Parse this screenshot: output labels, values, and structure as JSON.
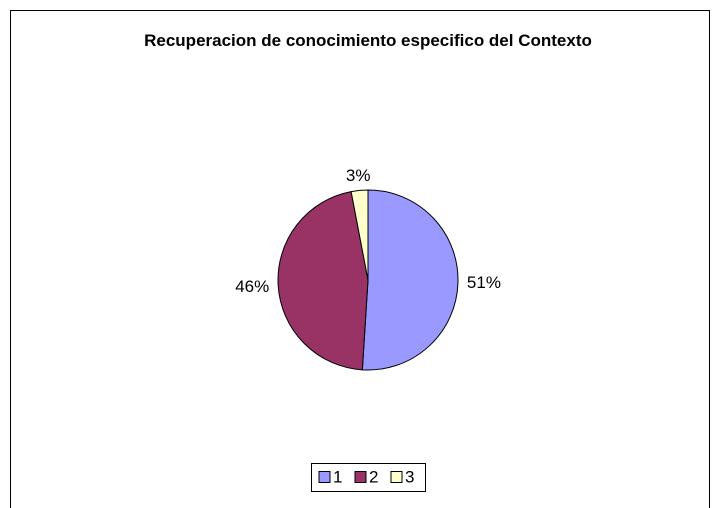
{
  "chart_data": {
    "type": "pie",
    "title": "Recuperacion de conocimiento especifico del Contexto",
    "categories": [
      "1",
      "2",
      "3"
    ],
    "values": [
      51,
      46,
      3
    ],
    "value_labels": [
      "51%",
      "46%",
      "3%"
    ],
    "colors": [
      "#9999ff",
      "#993366",
      "#ffffcc"
    ],
    "legend": "bottom"
  }
}
